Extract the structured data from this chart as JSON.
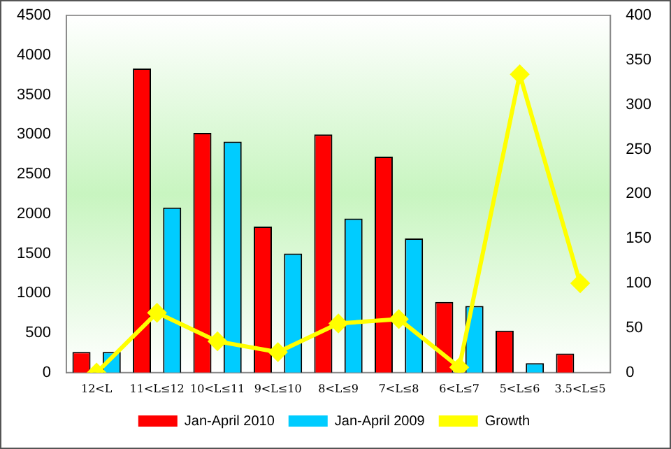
{
  "chart_data": {
    "type": "bar",
    "categories": [
      "12<L",
      "11<L≤12",
      "10<L≤11",
      "9<L≤10",
      "8<L≤9",
      "7<L≤8",
      "6<L≤7",
      "5<L≤6",
      "3.5<L≤5"
    ],
    "series": [
      {
        "name": "Jan-April 2010",
        "color": "#ff0000",
        "values": [
          260,
          3830,
          3020,
          1840,
          3000,
          2720,
          890,
          530,
          240
        ]
      },
      {
        "name": "Jan-April 2009",
        "color": "#00ccff",
        "values": [
          260,
          2080,
          2910,
          1500,
          1940,
          1690,
          840,
          120,
          null
        ]
      },
      {
        "name": "Growth",
        "type": "line",
        "axis": "y2",
        "color": "#ffff00",
        "marker": "diamond",
        "values": [
          0,
          67,
          35,
          23,
          55,
          60,
          6,
          334,
          100
        ]
      }
    ],
    "ylim": [
      0,
      4500
    ],
    "yticks": [
      0,
      500,
      1000,
      1500,
      2000,
      2500,
      3000,
      3500,
      4000,
      4500
    ],
    "y2lim": [
      0,
      400
    ],
    "y2ticks": [
      0,
      50,
      100,
      150,
      200,
      250,
      300,
      350,
      400
    ],
    "grid": false,
    "legend": "bottom"
  }
}
